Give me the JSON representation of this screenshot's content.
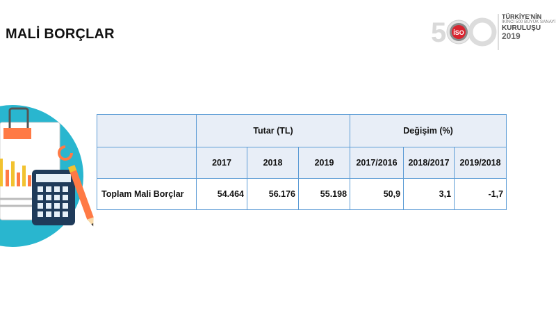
{
  "page": {
    "title": "MALİ BORÇLAR"
  },
  "logo": {
    "number": "500",
    "badge": "İSO",
    "line1": "TÜRKİYE'NİN",
    "line2": "İKİNCİ 500 BÜYÜK SANAYİ",
    "line3": "KURULUŞU",
    "year": "2019"
  },
  "table": {
    "group_headers": {
      "amount": "Tutar (TL)",
      "change": "Değişim (%)"
    },
    "year_headers": [
      "2017",
      "2018",
      "2019"
    ],
    "change_headers": [
      "2017/2016",
      "2018/2017",
      "2019/2018"
    ],
    "rows": [
      {
        "label": "Toplam Mali Borçlar",
        "values": [
          "54.464",
          "56.176",
          "55.198"
        ],
        "changes": [
          "50,9",
          "3,1",
          "-1,7"
        ]
      }
    ]
  },
  "colors": {
    "table_border": "#5b9bd5",
    "header_bg": "#e8eef7",
    "illustration_circle": "#29b6cf"
  }
}
